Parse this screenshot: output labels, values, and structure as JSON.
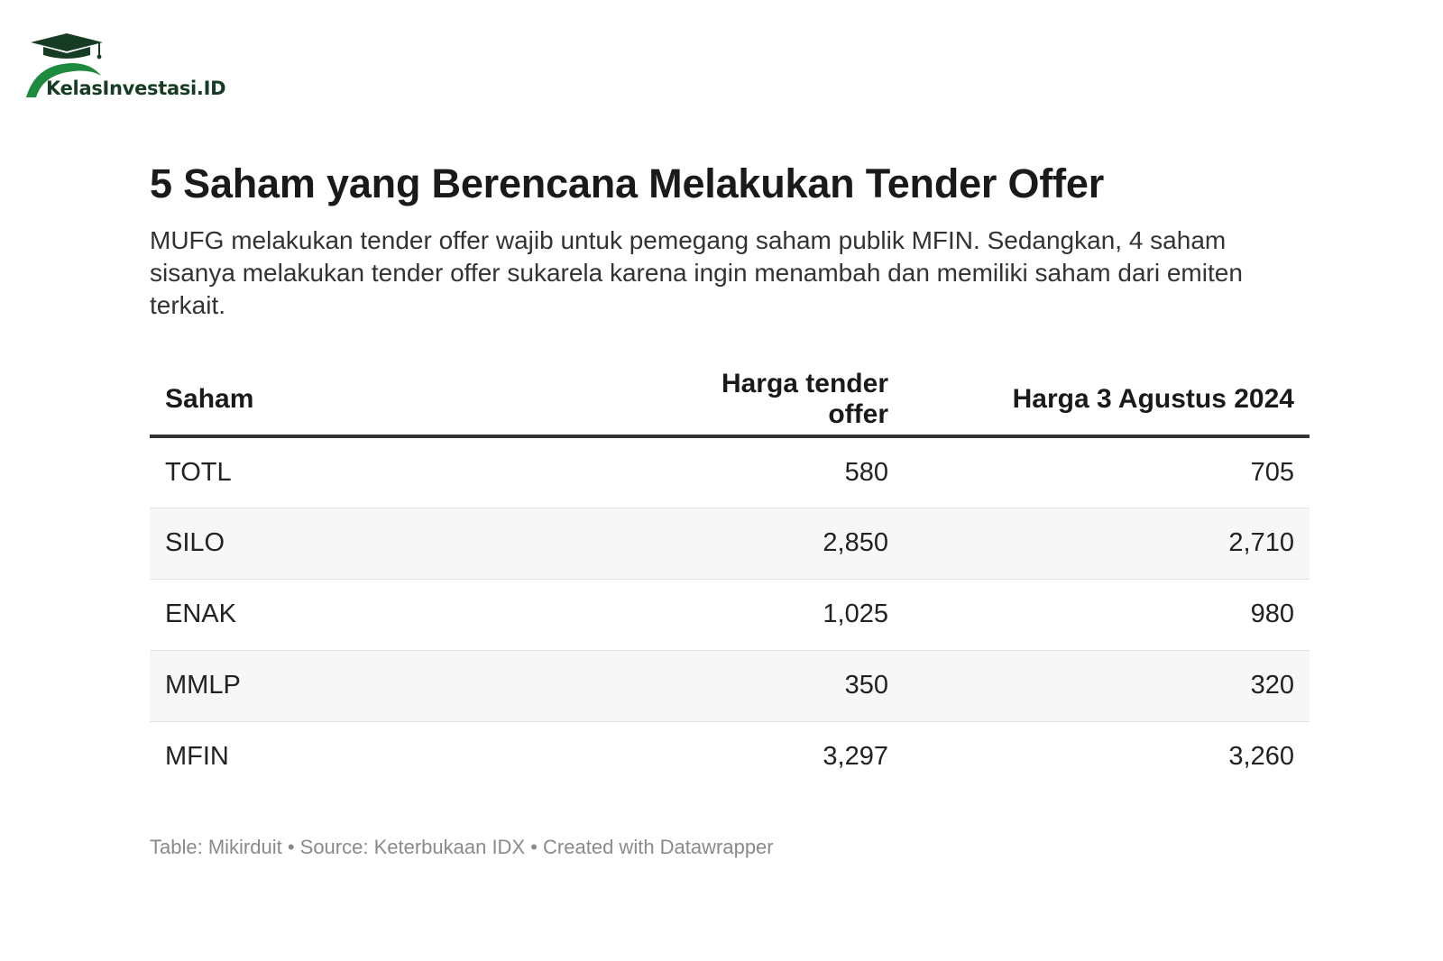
{
  "logo": {
    "text": "KelasInvestasi.ID",
    "colors": {
      "cap": "#163d24",
      "arc": "#1e8a3e"
    }
  },
  "title": "5 Saham yang Berencana Melakukan Tender Offer",
  "subtitle": "MUFG melakukan tender offer wajib untuk pemegang saham publik MFIN. Sedangkan, 4 saham sisanya melakukan tender offer sukarela karena ingin menambah dan memiliki saham dari emiten terkait.",
  "chart_data": {
    "type": "table",
    "title": "5 Saham yang Berencana Melakukan Tender Offer",
    "columns": [
      "Saham",
      "Harga tender offer",
      "Harga 3 Agustus 2024"
    ],
    "rows": [
      [
        "TOTL",
        "580",
        "705"
      ],
      [
        "SILO",
        "2,850",
        "2,710"
      ],
      [
        "ENAK",
        "1,025",
        "980"
      ],
      [
        "MMLP",
        "350",
        "320"
      ],
      [
        "MFIN",
        "3,297",
        "3,260"
      ]
    ]
  },
  "footer": "Table: Mikirduit • Source: Keterbukaan IDX • Created with Datawrapper"
}
